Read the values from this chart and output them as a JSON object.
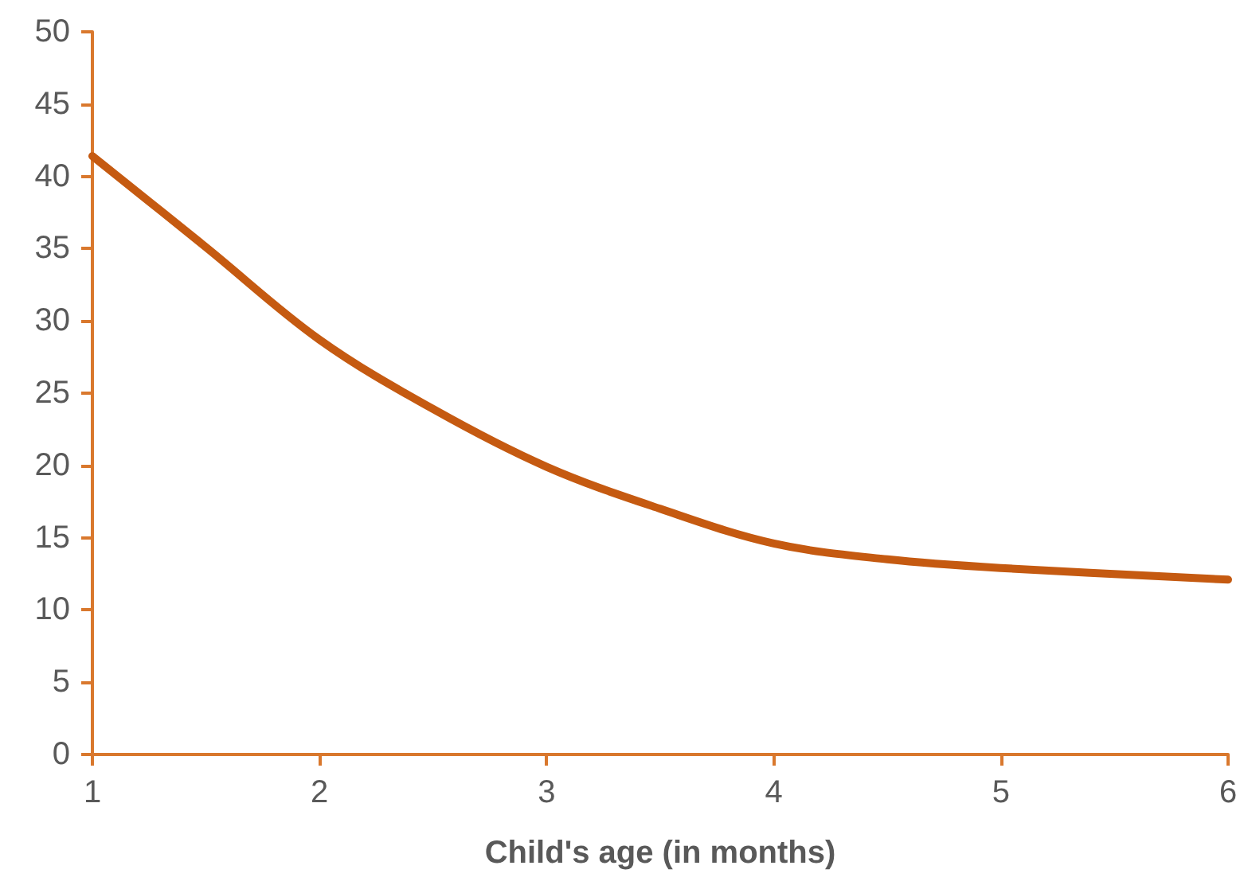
{
  "chart_data": {
    "type": "line",
    "xlabel": "Child's age (in months)",
    "x": [
      1,
      1.5,
      2,
      2.5,
      3,
      3.5,
      4,
      4.5,
      5,
      6
    ],
    "series": [
      {
        "color": "#c55a11",
        "values": [
          41.4,
          35.1,
          28.7,
          23.9,
          19.9,
          17.0,
          14.6,
          13.5,
          12.9,
          12.1
        ]
      }
    ],
    "xlim": [
      1,
      6
    ],
    "xticks": [
      1,
      2,
      3,
      4,
      5,
      6
    ],
    "ylim": [
      0,
      50
    ],
    "yticks": [
      0,
      5,
      10,
      15,
      20,
      25,
      30,
      35,
      40,
      45,
      50
    ],
    "grid": false,
    "marker": "none",
    "line_style": "solid"
  }
}
